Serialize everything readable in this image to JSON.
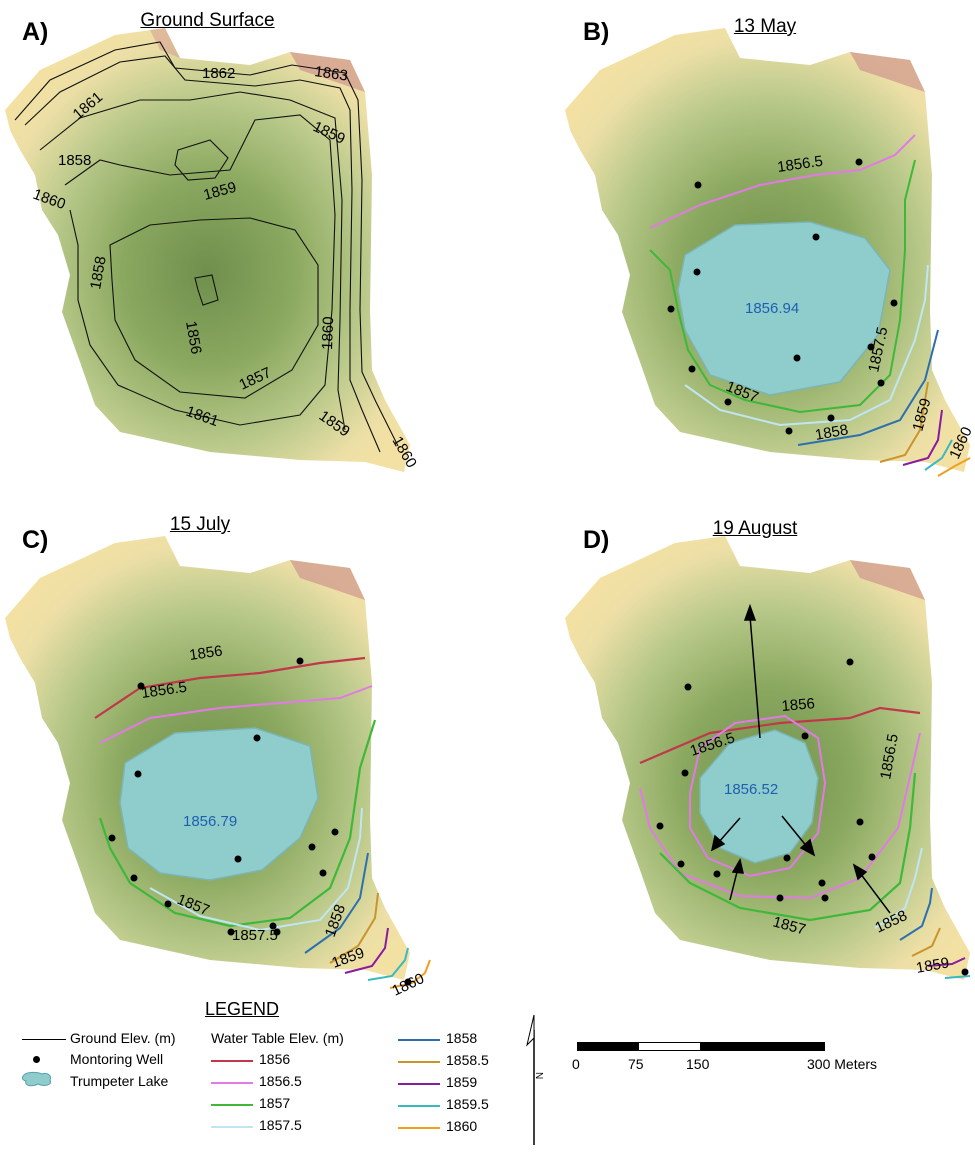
{
  "panels": {
    "a": {
      "letter": "A)",
      "title": "Ground Surface",
      "labels": [
        "1862",
        "1863",
        "1861",
        "1859",
        "1858",
        "1860",
        "1859",
        "1858",
        "1856",
        "1860",
        "1857",
        "1861",
        "1859",
        "1860"
      ]
    },
    "b": {
      "letter": "B)",
      "title": "13 May",
      "lake_elev": "1856.94",
      "labels": [
        "1856.5",
        "1857.5",
        "1857",
        "1858",
        "1859",
        "1860"
      ]
    },
    "c": {
      "letter": "C)",
      "title": "15 July",
      "lake_elev": "1856.79",
      "labels": [
        "1856",
        "1856.5",
        "1857",
        "1857.5",
        "1858",
        "1859",
        "1860"
      ]
    },
    "d": {
      "letter": "D)",
      "title": "19 August",
      "lake_elev": "1856.52",
      "labels": [
        "1856",
        "1856.5",
        "1856.5",
        "1857",
        "1858",
        "1859"
      ]
    }
  },
  "legend": {
    "title": "LEGEND",
    "ground_elev": "Ground Elev. (m)",
    "well": "Montoring Well",
    "lake": "Trumpeter Lake",
    "water_table": "Water Table Elev. (m)",
    "contours": [
      {
        "label": "1856",
        "color": "#c0394b"
      },
      {
        "label": "1856.5",
        "color": "#e27ae6"
      },
      {
        "label": "1857",
        "color": "#3fb83a"
      },
      {
        "label": "1857.5",
        "color": "#bfe6f2"
      },
      {
        "label": "1858",
        "color": "#2e6fb0"
      },
      {
        "label": "1858.5",
        "color": "#c8952a"
      },
      {
        "label": "1859",
        "color": "#8a1aa0"
      },
      {
        "label": "1859.5",
        "color": "#3bb8c0"
      },
      {
        "label": "1860",
        "color": "#f0a020"
      }
    ]
  },
  "scale": {
    "ticks": [
      "0",
      "75",
      "150",
      "300 Meters"
    ]
  },
  "north": "N"
}
